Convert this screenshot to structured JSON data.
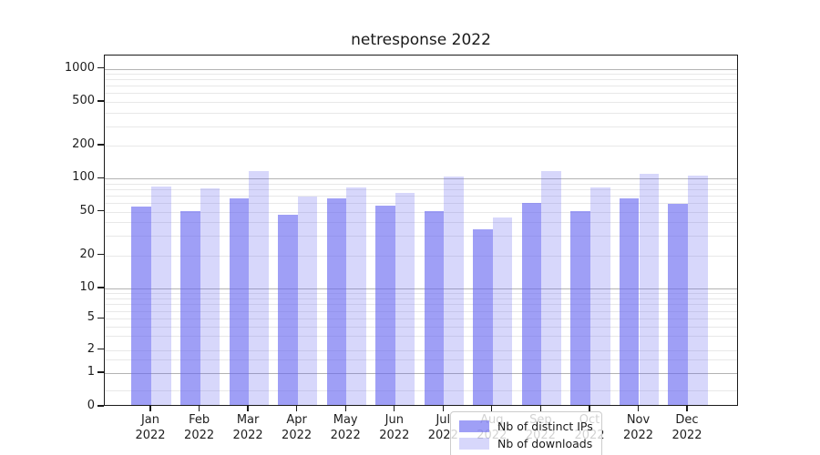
{
  "figure": {
    "title": "netresponse 2022",
    "background": "#ffffff"
  },
  "chart_data": {
    "type": "bar",
    "title": "netresponse 2022",
    "categories": [
      "Jan",
      "Feb",
      "Mar",
      "Apr",
      "May",
      "Jun",
      "Jul",
      "Aug",
      "Sep",
      "Oct",
      "Nov",
      "Dec"
    ],
    "category_year": "2022",
    "series": [
      {
        "name": "Nb of distinct IPs",
        "values": [
          55,
          50,
          65,
          46,
          66,
          56,
          50,
          34,
          59,
          50,
          66,
          58
        ],
        "color": "rgba(100,100,240,0.62)"
      },
      {
        "name": "Nb of downloads",
        "values": [
          84,
          80,
          115,
          68,
          82,
          74,
          104,
          44,
          115,
          82,
          110,
          105
        ],
        "color": "rgba(100,100,240,0.26)"
      }
    ],
    "xlabel": "",
    "ylabel": "",
    "yscale": "symlog",
    "ylim": [
      0,
      1350
    ],
    "yticks_labeled": [
      0,
      1,
      2,
      5,
      10,
      20,
      50,
      100,
      200,
      500,
      1000
    ],
    "major_grid_values": [
      1,
      10,
      100,
      1000
    ],
    "minor_grid_values": [
      0.5,
      1.5,
      2,
      3,
      4,
      5,
      6,
      7,
      8,
      9,
      20,
      30,
      40,
      50,
      60,
      70,
      80,
      90,
      200,
      300,
      400,
      500,
      600,
      700,
      800,
      900
    ],
    "grid": true,
    "legend_position": "lower center"
  },
  "colors": {
    "major_grid": "#b3b3b3",
    "minor_grid": "#e8e8e8",
    "spine": "#1a1a1a",
    "text": "#202020"
  }
}
